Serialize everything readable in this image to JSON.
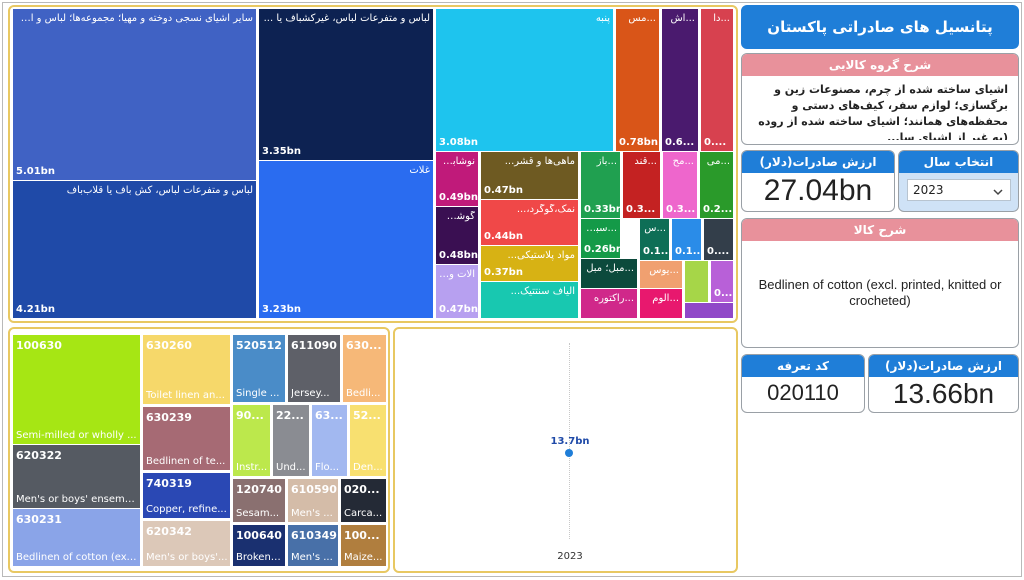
{
  "title": "پتانسیل های صادراتی پاکستان",
  "group_desc": {
    "header": "شرح گروه کالایی",
    "text": "اشیای ساخته شده از چرم، مصنوعات زین و برگسازی؛ لوازم سفر، کیف‌های دستی و محفظه‌های همانند؛ اشیای ساخته شده از روده (به غیر از اشیای سا..."
  },
  "export_value_total": {
    "header": "ارزش صادرات(دلار)",
    "value": "27.04bn"
  },
  "year_select": {
    "header": "انتخاب سال",
    "value": "2023"
  },
  "product_desc": {
    "header": "شرح کالا",
    "text": "Bedlinen of cotton (excl. printed, knitted or crocheted)"
  },
  "tariff": {
    "header": "کد تعرفه",
    "value": "020110"
  },
  "export_value_item": {
    "header": "ارزش صادرات(دلار)",
    "value": "13.66bn"
  },
  "point_chart": {
    "label": "13.7bn",
    "x_label": "2023"
  },
  "top_treemap": [
    {
      "label": "سایر اشیای نسجی دوخته و مهیا؛ مجموعه‌ها؛ لباس و اش...",
      "value": "5.01bn",
      "color": "#4062c4"
    },
    {
      "label": "لباس و متفرعات لباس، کش باف یا قلاب‌باف",
      "value": "4.21bn",
      "color": "#1f4aa8"
    },
    {
      "label": "لباس و متفرعات لباس، غیرکشباف یا ...",
      "value": "3.35bn",
      "color": "#0d2252"
    },
    {
      "label": "غلات",
      "value": "3.23bn",
      "color": "#2a6cf0"
    },
    {
      "label": "پنبه",
      "value": "3.08bn",
      "color": "#1ec4ee"
    },
    {
      "label": "...مس",
      "value": "0.78bn",
      "color": "#d95518"
    },
    {
      "label": "...اش",
      "value": "0.6...",
      "color": "#4a1a6e"
    },
    {
      "label": "...دا",
      "value": "0....",
      "color": "#d7414f"
    },
    {
      "label": "نوشابه‌ها، آ...",
      "value": "0.49bn",
      "color": "#c01a7a"
    },
    {
      "label": "ماهی‌ها و قشر...",
      "value": "0.47bn",
      "color": "#6e5a22"
    },
    {
      "label": "...باز",
      "value": "0.33bn",
      "color": "#20a050"
    },
    {
      "label": "...قند",
      "value": "0.3...",
      "color": "#c42222"
    },
    {
      "label": "...مح",
      "value": "0.3...",
      "color": "#ee66cc"
    },
    {
      "label": "...می",
      "value": "0.2...",
      "color": "#2a9a2a"
    },
    {
      "label": "گوشت و اح...",
      "value": "0.48bn",
      "color": "#3a0f52"
    },
    {
      "label": "نمک،گوگرد،...",
      "value": "0.44bn",
      "color": "#f04848"
    },
    {
      "label": "...سبزیجا",
      "value": "0.26bn",
      "color": "#149a48"
    },
    {
      "label": "...س",
      "value": "0.1...",
      "color": "#0e6e56"
    },
    {
      "label": "",
      "value": "0.1...",
      "color": "#2a8ce8"
    },
    {
      "label": "",
      "value": "0....",
      "color": "#333e4a"
    },
    {
      "label": "آلات و دست...",
      "value": "0.47bn",
      "color": "#b7a0f0"
    },
    {
      "label": "مواد پلاستیکی...",
      "value": "0.37bn",
      "color": "#d7b214"
    },
    {
      "label": "...مبل؛ مبل",
      "value": "",
      "color": "#0c4a3c"
    },
    {
      "label": "...یوس",
      "value": "",
      "color": "#f0a070"
    },
    {
      "label": "",
      "value": "",
      "color": "#a6d648"
    },
    {
      "label": "",
      "value": "0....",
      "color": "#b860d8"
    },
    {
      "label": "الیاف سنتتیک...",
      "value": "",
      "color": "#18c8b0"
    },
    {
      "label": "...راکتوره",
      "value": "",
      "color": "#d0288a"
    },
    {
      "label": "...آلوم",
      "value": "",
      "color": "#e8186e"
    },
    {
      "label": "",
      "value": "",
      "color": "#f6a3a3"
    },
    {
      "label": "",
      "value": "",
      "color": "#9048c8"
    }
  ],
  "bottom_treemap": [
    {
      "code": "100630",
      "desc": "Semi-milled or wholly ...",
      "color": "#a6e614"
    },
    {
      "code": "620322",
      "desc": "Men's or boys' ensemb...",
      "color": "#555a62"
    },
    {
      "code": "630231",
      "desc": "Bedlinen of cotton (excl...",
      "color": "#8aa4e8"
    },
    {
      "code": "630260",
      "desc": "Toilet linen an...",
      "color": "#f6d86a"
    },
    {
      "code": "630239",
      "desc": "Bedlinen of te...",
      "color": "#a66a74"
    },
    {
      "code": "740319",
      "desc": "Copper, refine...",
      "color": "#2a48b4"
    },
    {
      "code": "620342",
      "desc": "Men's or boys'...",
      "color": "#dcc8b8"
    },
    {
      "code": "520512",
      "desc": "Single ...",
      "color": "#4a8cc8"
    },
    {
      "code": "611090",
      "desc": "Jersey...",
      "color": "#5e6068"
    },
    {
      "code": "630...",
      "desc": "Bedli...",
      "color": "#f6b878"
    },
    {
      "code": "90...",
      "desc": "Instr...",
      "color": "#bce84c"
    },
    {
      "code": "22...",
      "desc": "Und...",
      "color": "#8a8c92"
    },
    {
      "code": "63...",
      "desc": "Flo...",
      "color": "#a2b8f0"
    },
    {
      "code": "52...",
      "desc": "Den...",
      "color": "#f8e070"
    },
    {
      "code": "120740",
      "desc": "Sesam...",
      "color": "#8a7070"
    },
    {
      "code": "610590",
      "desc": "Men's ...",
      "color": "#d4bca8"
    },
    {
      "code": "020...",
      "desc": "Carca...",
      "color": "#242a36"
    },
    {
      "code": "100640",
      "desc": "Broken ...",
      "color": "#1a3070"
    },
    {
      "code": "610349",
      "desc": "Men's ...",
      "color": "#4870a8"
    },
    {
      "code": "100...",
      "desc": "Maize...",
      "color": "#b07e3e"
    }
  ]
}
